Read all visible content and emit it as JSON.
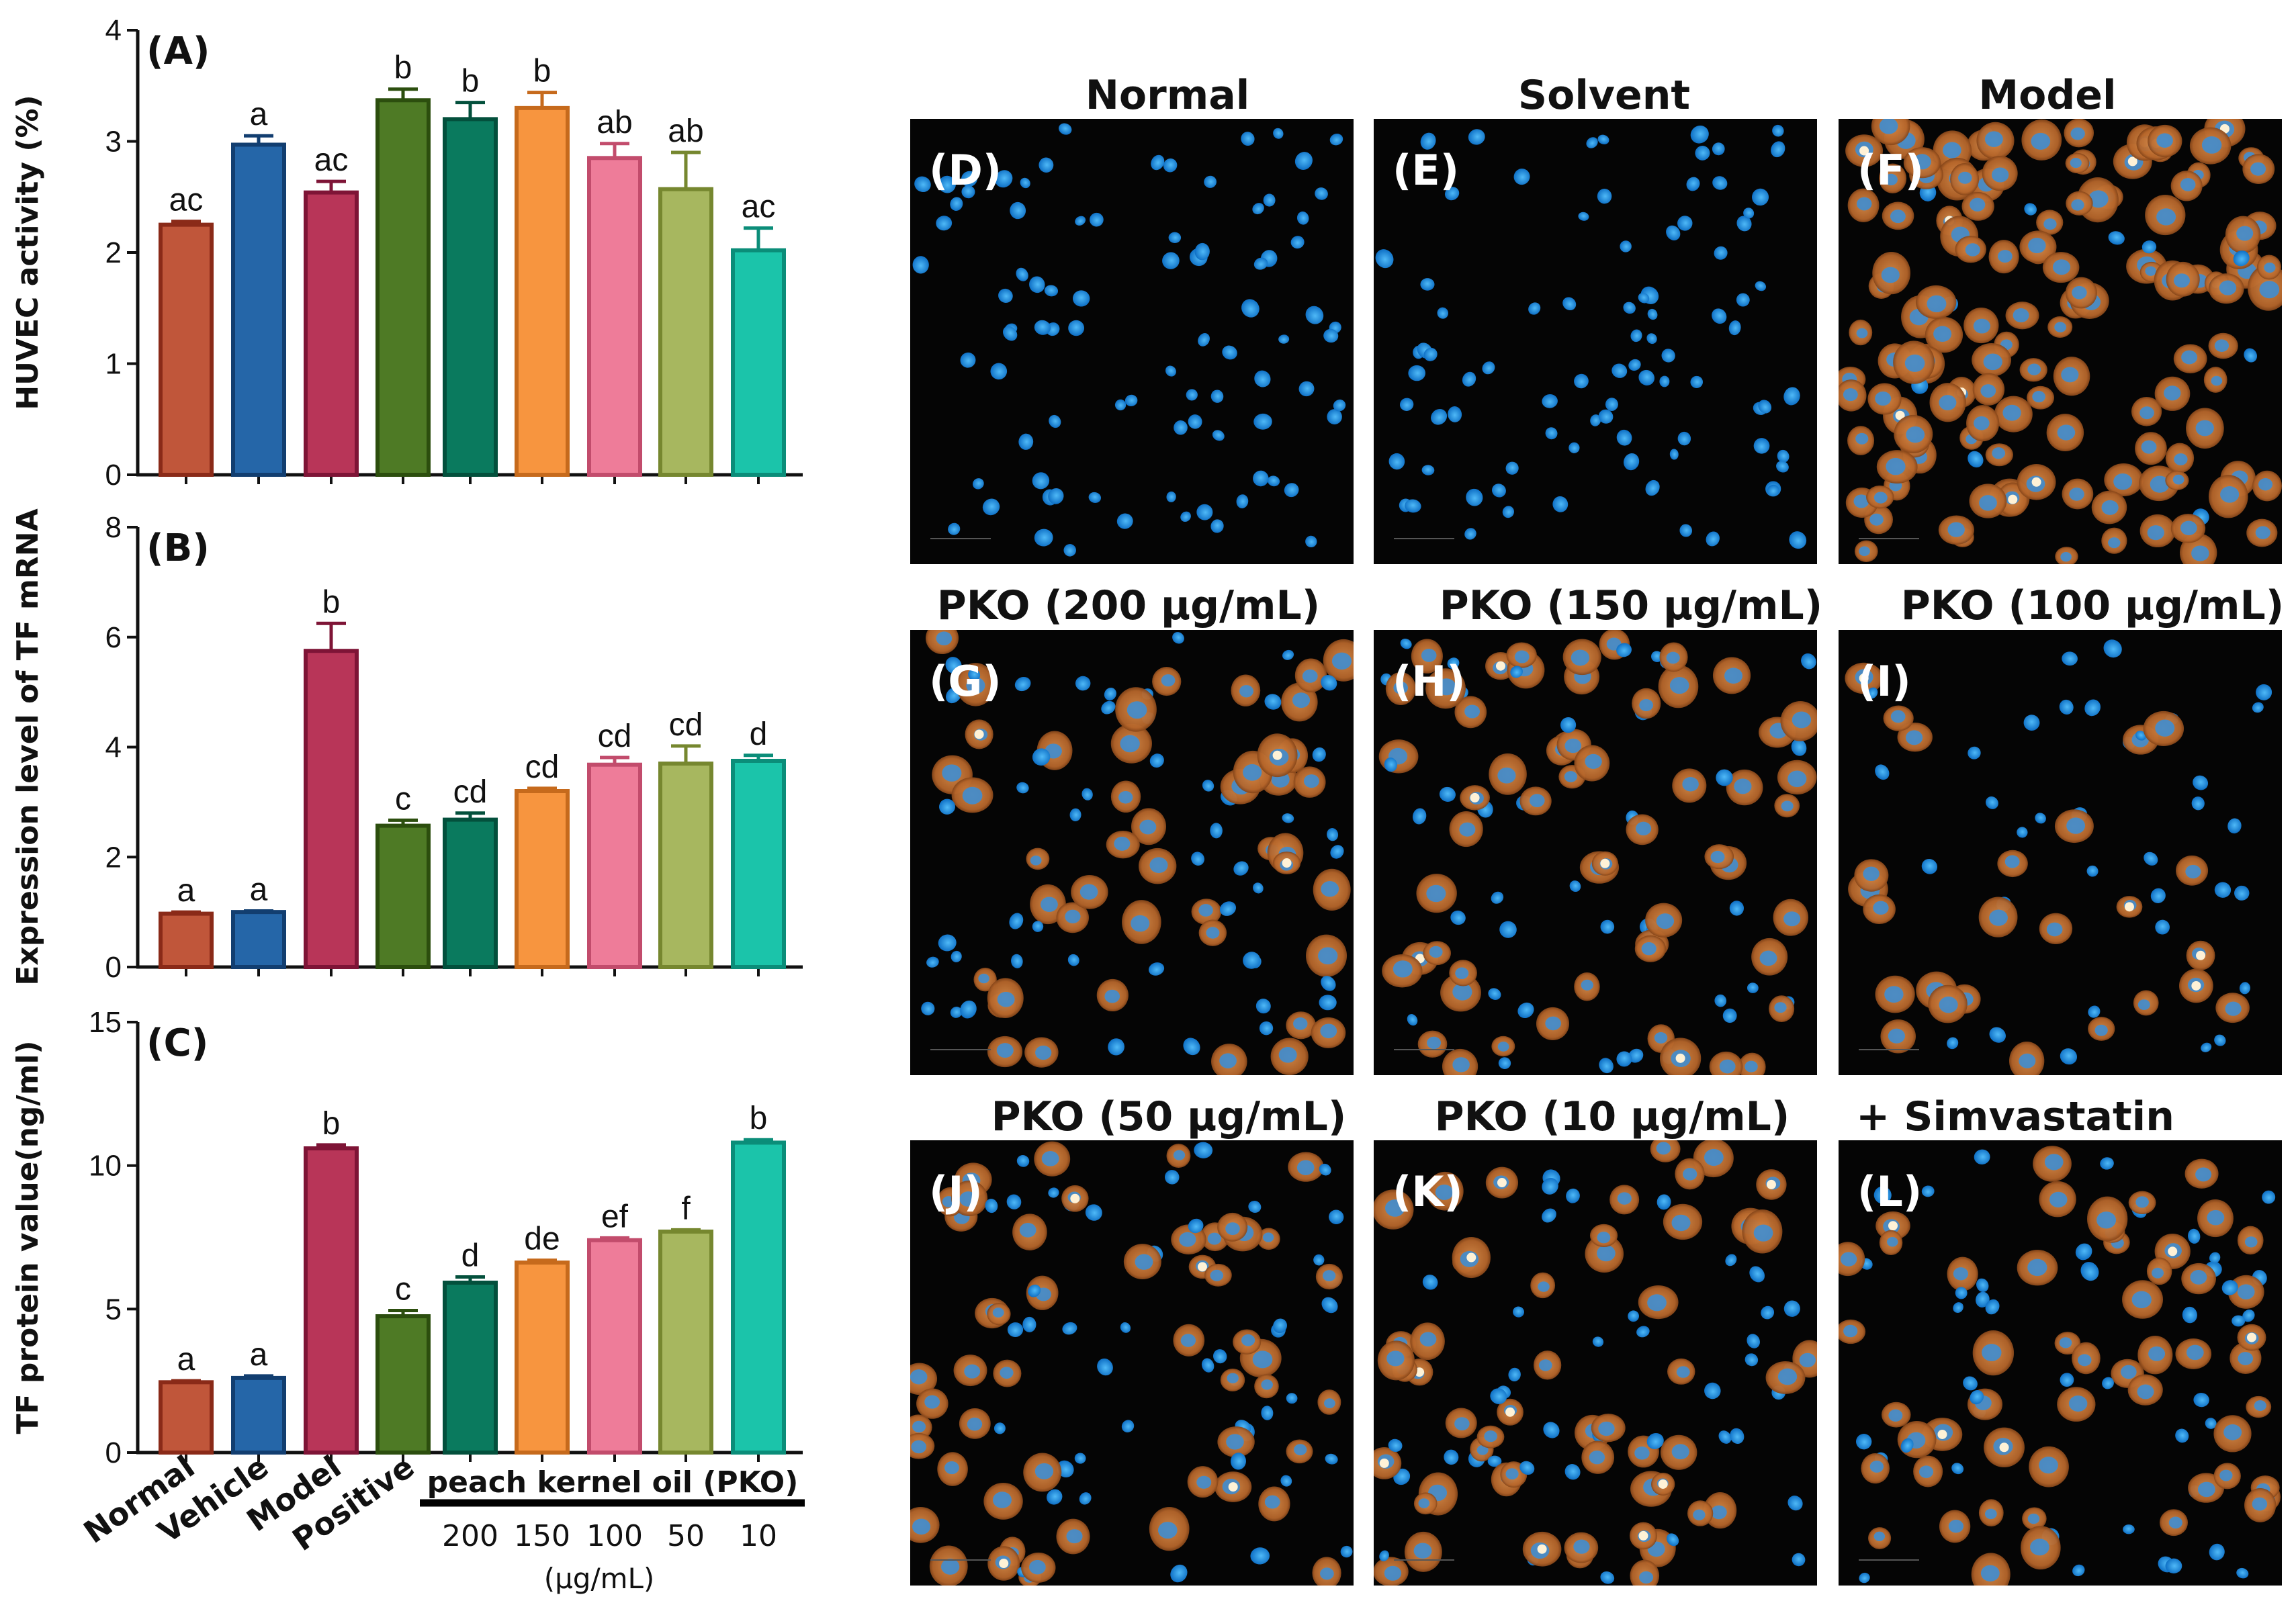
{
  "colors": [
    "#c0563a",
    "#2566a8",
    "#b83558",
    "#4e7a25",
    "#0a7a5e",
    "#f7953f",
    "#ee7c99",
    "#a7b75f",
    "#1bc4aa"
  ],
  "edge_colors": [
    "#8a2a18",
    "#123e70",
    "#7e1436",
    "#2c4e0e",
    "#03503c",
    "#c66a1c",
    "#c24c6c",
    "#76872f",
    "#0b8d79"
  ],
  "chart_data": [
    {
      "type": "bar",
      "panel": "(A)",
      "ylabel": "HUVEC activity (%)",
      "ylim": [
        0,
        4
      ],
      "yticks": [
        0,
        1,
        2,
        3,
        4
      ],
      "categories": [
        "Normal",
        "Vehicle",
        "Model",
        "Positive",
        "200",
        "150",
        "100",
        "50",
        "10"
      ],
      "values": [
        2.25,
        2.97,
        2.54,
        3.37,
        3.2,
        3.3,
        2.85,
        2.57,
        2.02
      ],
      "errors": [
        0.03,
        0.08,
        0.1,
        0.1,
        0.15,
        0.14,
        0.13,
        0.33,
        0.2
      ],
      "labels": [
        "ac",
        "a",
        "ac",
        "b",
        "b",
        "b",
        "ab",
        "ab",
        "ac"
      ]
    },
    {
      "type": "bar",
      "panel": "(B)",
      "ylabel": "Expression level of TF mRNA",
      "ylim": [
        0,
        8
      ],
      "yticks": [
        0,
        2,
        4,
        6,
        8
      ],
      "categories": [
        "Normal",
        "Vehicle",
        "Model",
        "Positive",
        "200",
        "150",
        "100",
        "50",
        "10"
      ],
      "values": [
        0.97,
        1.0,
        5.75,
        2.57,
        2.68,
        3.2,
        3.68,
        3.7,
        3.75
      ],
      "errors": [
        0.03,
        0.02,
        0.5,
        0.1,
        0.12,
        0.05,
        0.13,
        0.32,
        0.1
      ],
      "labels": [
        "a",
        "a",
        "b",
        "c",
        "cd",
        "cd",
        "cd",
        "cd",
        "d"
      ]
    },
    {
      "type": "bar",
      "panel": "(C)",
      "ylabel": "TF protein value(ng/ml)",
      "ylim": [
        0,
        15
      ],
      "yticks": [
        0,
        5,
        10,
        15
      ],
      "categories": [
        "Normal",
        "Vehicle",
        "Model",
        "Positive",
        "200",
        "150",
        "100",
        "50",
        "10"
      ],
      "values": [
        2.45,
        2.6,
        10.6,
        4.75,
        5.92,
        6.62,
        7.4,
        7.7,
        10.8
      ],
      "errors": [
        0.05,
        0.07,
        0.12,
        0.2,
        0.2,
        0.08,
        0.08,
        0.06,
        0.1
      ],
      "labels": [
        "a",
        "a",
        "b",
        "c",
        "d",
        "de",
        "ef",
        "f",
        "b"
      ]
    }
  ],
  "x_axis": {
    "categories": [
      "Normal",
      "Vehicle",
      "Model",
      "Positive"
    ],
    "group_label": "peach kernel oil (PKO)",
    "doses": [
      "200",
      "150",
      "100",
      "50",
      "10"
    ],
    "unit": "(μg/mL)"
  },
  "images": [
    {
      "title": "Normal",
      "letter": "(D)",
      "stain": "blue"
    },
    {
      "title": "Solvent",
      "letter": "(E)",
      "stain": "blue"
    },
    {
      "title": "Model",
      "letter": "(F)",
      "stain": "orange-dense"
    },
    {
      "title": "PKO (200 μg/mL)",
      "letter": "(G)",
      "stain": "mixed"
    },
    {
      "title": "PKO (150 μg/mL)",
      "letter": "(H)",
      "stain": "mixed"
    },
    {
      "title": "PKO (100 μg/mL)",
      "letter": "(I)",
      "stain": "mixed-sparse"
    },
    {
      "title": "PKO (50 μg/mL)",
      "letter": "(J)",
      "stain": "mixed"
    },
    {
      "title": "PKO (10 μg/mL)",
      "letter": "(K)",
      "stain": "mixed"
    },
    {
      "title": "+ Simvastatin",
      "letter": "(L)",
      "stain": "mixed"
    }
  ]
}
